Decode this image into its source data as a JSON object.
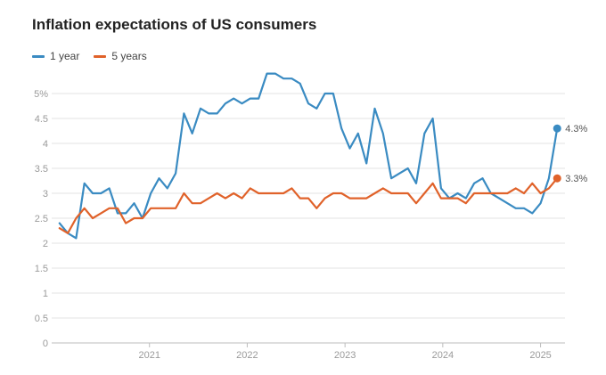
{
  "chart_data": {
    "type": "line",
    "title": "Inflation expectations of US consumers",
    "xlabel": "",
    "ylabel": "",
    "ylim": [
      0,
      5.5
    ],
    "y_ticks": [
      0,
      0.5,
      1,
      1.5,
      2,
      2.5,
      3,
      3.5,
      4,
      4.5,
      5
    ],
    "y_tick_labels": [
      "0",
      "0.5",
      "1",
      "1.5",
      "2",
      "2.5",
      "3",
      "3.5",
      "4",
      "4.5",
      "5%"
    ],
    "x_range": [
      2020.0,
      2025.25
    ],
    "x_ticks": [
      2021,
      2022,
      2023,
      2024,
      2025
    ],
    "x_tick_labels": [
      "2021",
      "2022",
      "2023",
      "2024",
      "2025"
    ],
    "series": [
      {
        "name": "1 year",
        "color": "#3a8bc2",
        "end_label": "4.3%",
        "values": [
          2.4,
          2.2,
          2.1,
          3.2,
          3.0,
          3.0,
          3.1,
          2.6,
          2.6,
          2.8,
          2.5,
          3.0,
          3.3,
          3.1,
          3.4,
          4.6,
          4.2,
          4.7,
          4.6,
          4.6,
          4.8,
          4.9,
          4.8,
          4.9,
          4.9,
          5.4,
          5.4,
          5.3,
          5.3,
          5.2,
          4.8,
          4.7,
          5.0,
          5.0,
          4.3,
          3.9,
          4.2,
          3.6,
          4.7,
          4.2,
          3.3,
          3.4,
          3.5,
          3.2,
          4.2,
          4.5,
          3.1,
          2.9,
          3.0,
          2.9,
          3.2,
          3.3,
          3.0,
          2.9,
          2.8,
          2.7,
          2.7,
          2.6,
          2.8,
          3.3,
          4.3
        ]
      },
      {
        "name": "5 years",
        "color": "#e0622a",
        "end_label": "3.3%",
        "values": [
          2.3,
          2.2,
          2.5,
          2.7,
          2.5,
          2.6,
          2.7,
          2.7,
          2.4,
          2.5,
          2.5,
          2.7,
          2.7,
          2.7,
          2.7,
          3.0,
          2.8,
          2.8,
          2.9,
          3.0,
          2.9,
          3.0,
          2.9,
          3.1,
          3.0,
          3.0,
          3.0,
          3.0,
          3.1,
          2.9,
          2.9,
          2.7,
          2.9,
          3.0,
          3.0,
          2.9,
          2.9,
          2.9,
          3.0,
          3.1,
          3.0,
          3.0,
          3.0,
          2.8,
          3.0,
          3.2,
          2.9,
          2.9,
          2.9,
          2.8,
          3.0,
          3.0,
          3.0,
          3.0,
          3.0,
          3.1,
          3.0,
          3.2,
          3.0,
          3.1,
          3.3
        ]
      }
    ]
  }
}
